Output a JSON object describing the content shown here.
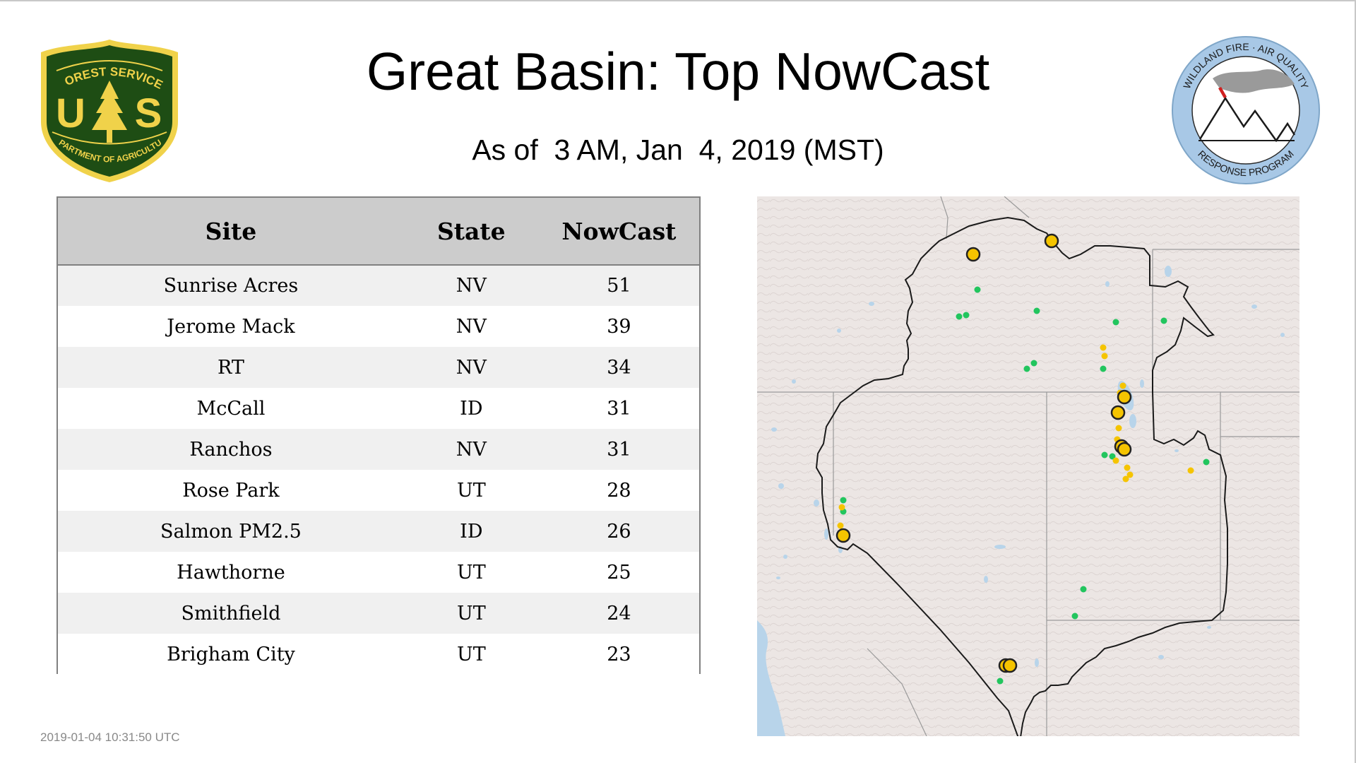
{
  "title": "Great Basin: Top NowCast",
  "subtitle": "As of  3 AM, Jan  4, 2019 (MST)",
  "logos": {
    "usfs": {
      "icon": "usfs-shield-logo",
      "top_text": "FOREST SERVICE",
      "left_letter": "U",
      "right_letter": "S",
      "bottom_text": "DEPARTMENT OF AGRICULTURE",
      "colors": {
        "green": "#1e4d14",
        "gold": "#f0d24a"
      }
    },
    "wfaq": {
      "icon": "wildland-fire-air-quality-logo",
      "top_text": "WILDLAND FIRE · AIR QUALITY",
      "bottom_text": "RESPONSE PROGRAM",
      "colors": {
        "ring": "#a8c8e6",
        "smoke": "#9a9a9a",
        "flame": "#d02020"
      }
    }
  },
  "table": {
    "headers": {
      "site": "Site",
      "state": "State",
      "nowcast": "NowCast"
    },
    "rows": [
      {
        "site": "Sunrise Acres",
        "state": "NV",
        "nowcast": "51"
      },
      {
        "site": "Jerome Mack",
        "state": "NV",
        "nowcast": "39"
      },
      {
        "site": "RT",
        "state": "NV",
        "nowcast": "34"
      },
      {
        "site": "McCall",
        "state": "ID",
        "nowcast": "31"
      },
      {
        "site": "Ranchos",
        "state": "NV",
        "nowcast": "31"
      },
      {
        "site": "Rose Park",
        "state": "UT",
        "nowcast": "28"
      },
      {
        "site": "Salmon PM2.5",
        "state": "ID",
        "nowcast": "26"
      },
      {
        "site": "Hawthorne",
        "state": "UT",
        "nowcast": "25"
      },
      {
        "site": "Smithfield",
        "state": "UT",
        "nowcast": "24"
      },
      {
        "site": "Brigham City",
        "state": "UT",
        "nowcast": "23"
      }
    ]
  },
  "map": {
    "icon": "great-basin-relief-map",
    "colors": {
      "land": "#ece6e4",
      "water": "#b8d4ea",
      "boundary": "#1a1a1a",
      "state_line": "#9a9a9a",
      "good": "#22c55e",
      "moderate": "#f5c400",
      "marker_outline": "#222222"
    }
  },
  "footer_timestamp": "2019-01-04 10:31:50 UTC"
}
